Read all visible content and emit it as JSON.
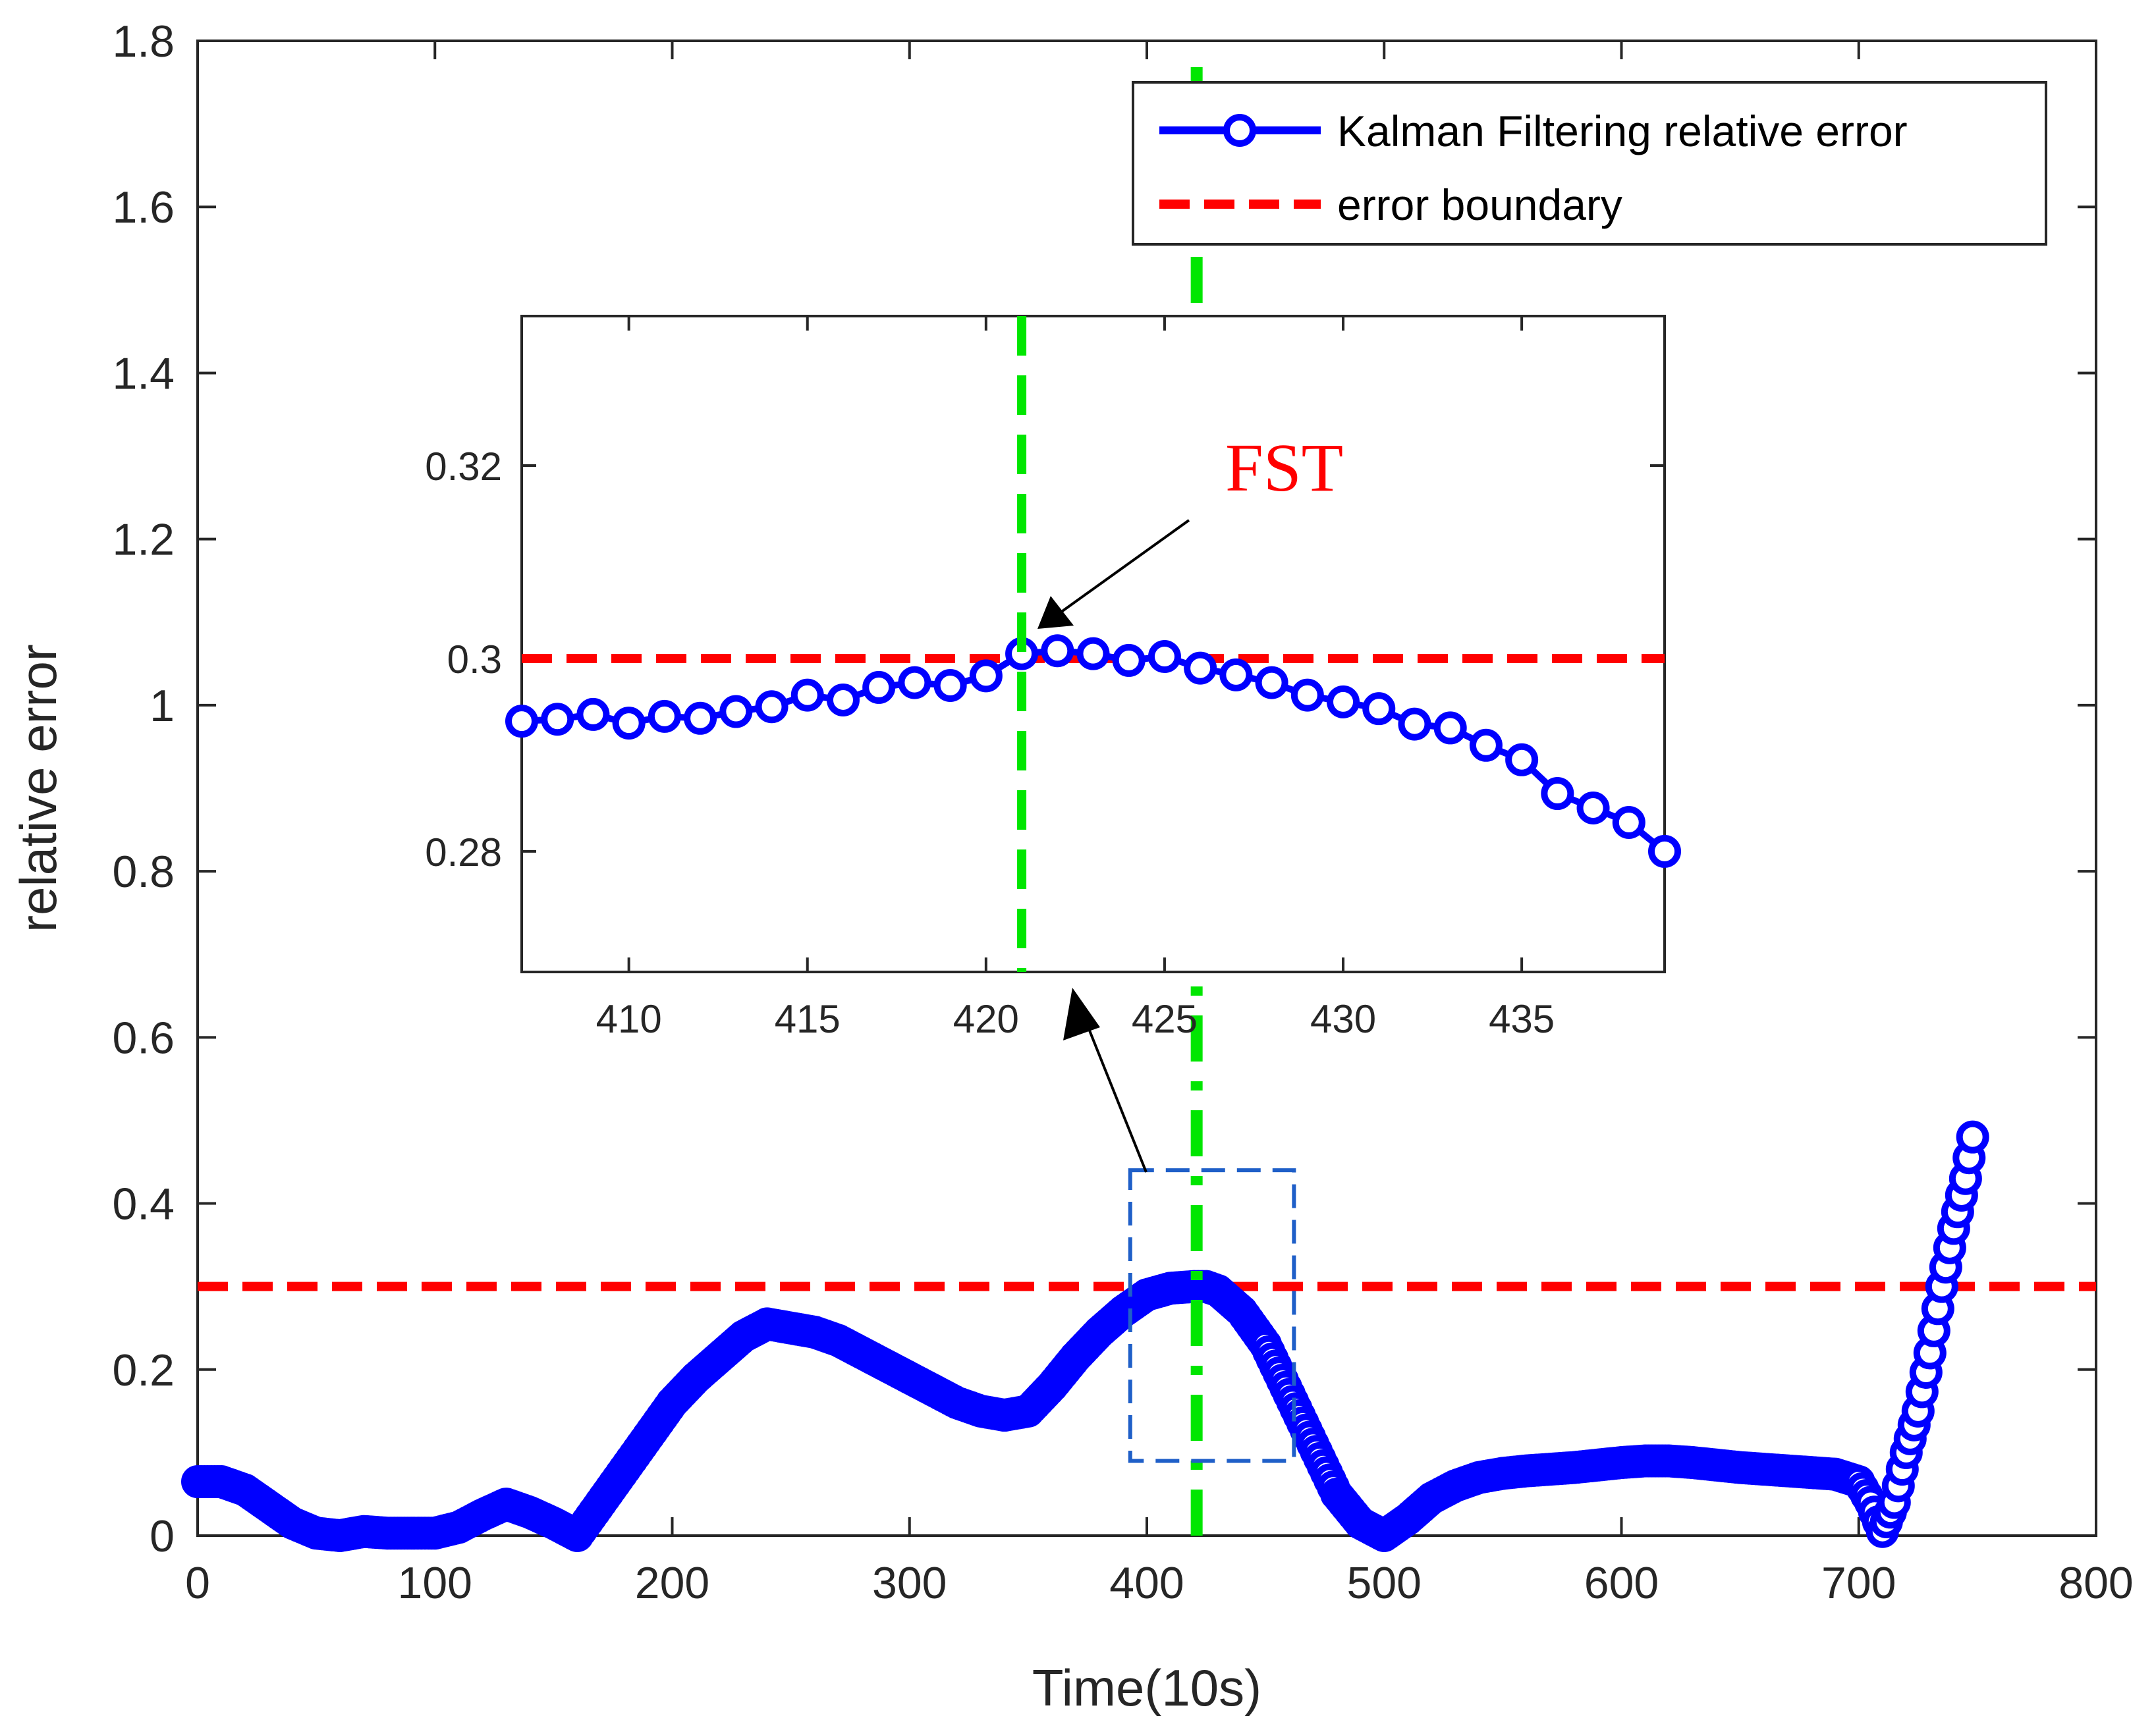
{
  "chart_data": {
    "type": "line",
    "xlabel": "Time(10s)",
    "ylabel": "relative error",
    "xlim": [
      0,
      800
    ],
    "ylim": [
      0,
      1.8
    ],
    "xticks": [
      "0",
      "100",
      "200",
      "300",
      "400",
      "500",
      "600",
      "700",
      "800"
    ],
    "yticks": [
      "0",
      "0.2",
      "0.4",
      "0.6",
      "0.8",
      "1",
      "1.2",
      "1.4",
      "1.6",
      "1.8"
    ],
    "legend": {
      "position": "top-right",
      "entries": [
        "Kalman Filtering relative error",
        "error boundary"
      ]
    },
    "series": [
      {
        "name": "Kalman Filtering relative error",
        "style": "solid line with circle markers",
        "x": [
          0,
          10,
          20,
          30,
          40,
          50,
          60,
          70,
          80,
          90,
          100,
          110,
          120,
          130,
          140,
          150,
          160,
          170,
          180,
          190,
          200,
          210,
          220,
          230,
          240,
          250,
          260,
          270,
          280,
          290,
          300,
          310,
          320,
          330,
          340,
          350,
          360,
          370,
          380,
          390,
          400,
          410,
          420,
          425,
          430,
          440,
          450,
          460,
          470,
          480,
          490,
          500,
          510,
          520,
          530,
          540,
          550,
          560,
          570,
          580,
          590,
          600,
          610,
          620,
          630,
          640,
          650,
          660,
          670,
          680,
          690,
          700,
          705,
          710,
          715,
          720,
          725,
          730,
          735,
          740,
          745,
          748
        ],
        "y": [
          0.065,
          0.065,
          0.055,
          0.035,
          0.015,
          0.003,
          0.0,
          0.005,
          0.003,
          0.003,
          0.003,
          0.01,
          0.025,
          0.038,
          0.028,
          0.015,
          0.0,
          0.04,
          0.08,
          0.12,
          0.16,
          0.19,
          0.215,
          0.24,
          0.255,
          0.25,
          0.245,
          0.235,
          0.22,
          0.205,
          0.19,
          0.175,
          0.16,
          0.15,
          0.145,
          0.15,
          0.18,
          0.215,
          0.245,
          0.27,
          0.29,
          0.298,
          0.3,
          0.3,
          0.295,
          0.27,
          0.23,
          0.17,
          0.11,
          0.05,
          0.015,
          0.0,
          0.02,
          0.045,
          0.06,
          0.07,
          0.075,
          0.078,
          0.08,
          0.082,
          0.085,
          0.088,
          0.09,
          0.09,
          0.088,
          0.085,
          0.082,
          0.08,
          0.078,
          0.076,
          0.074,
          0.065,
          0.04,
          0.005,
          0.04,
          0.1,
          0.15,
          0.22,
          0.3,
          0.37,
          0.43,
          0.48
        ],
        "color": "#0000ff"
      },
      {
        "name": "error boundary",
        "style": "dashed",
        "y": 0.3,
        "color": "#ff0000"
      }
    ],
    "vertical_marker": {
      "x": 421,
      "style": "dash-dot",
      "color": "#00e600"
    },
    "inset": {
      "xlim": [
        407,
        439
      ],
      "ylim": [
        0.2675,
        0.3355
      ],
      "xticks": [
        "410",
        "415",
        "420",
        "425",
        "430",
        "435"
      ],
      "yticks": [
        "0.28",
        "0.3",
        "0.32"
      ],
      "x": [
        407,
        408,
        409,
        410,
        411,
        412,
        413,
        414,
        415,
        416,
        417,
        418,
        419,
        420,
        421,
        422,
        423,
        424,
        425,
        426,
        427,
        428,
        429,
        430,
        431,
        432,
        433,
        434,
        435,
        436,
        437,
        438,
        439
      ],
      "y": [
        0.2935,
        0.2937,
        0.2942,
        0.2933,
        0.294,
        0.2938,
        0.2945,
        0.295,
        0.2962,
        0.2957,
        0.297,
        0.2975,
        0.2972,
        0.2982,
        0.3005,
        0.3008,
        0.3005,
        0.2998,
        0.3002,
        0.299,
        0.2983,
        0.2975,
        0.2962,
        0.2955,
        0.2948,
        0.2932,
        0.2928,
        0.291,
        0.2895,
        0.286,
        0.2845,
        0.283,
        0.28
      ],
      "boundary": 0.3,
      "marker_x": 421,
      "zoom_box": {
        "xlim": [
          393,
          462
        ],
        "ylim": [
          0.09,
          0.44
        ]
      }
    },
    "annotations": [
      {
        "text": "FST",
        "color": "#ff0000",
        "points_to": {
          "x": 421,
          "y": 0.3005
        }
      }
    ]
  }
}
